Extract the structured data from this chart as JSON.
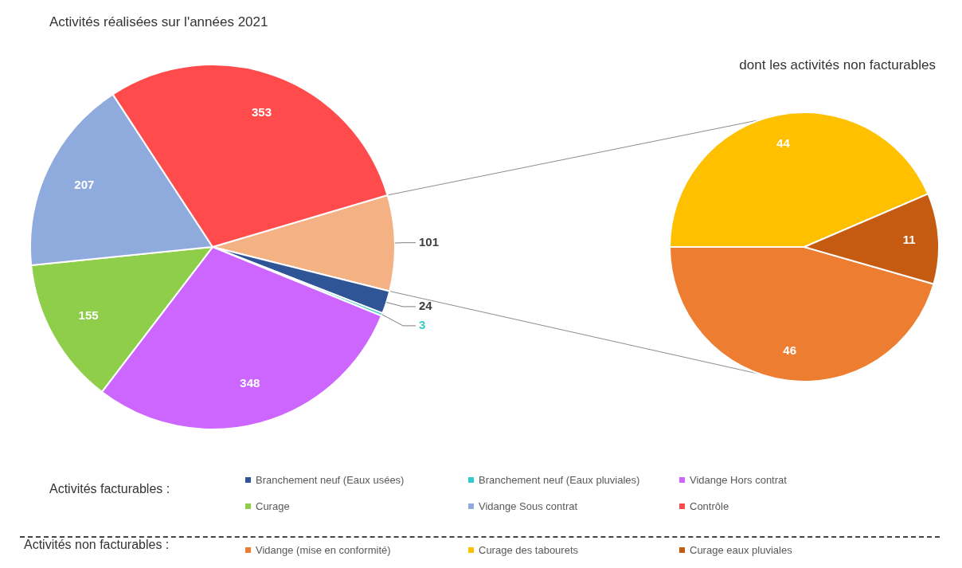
{
  "chart_data": [
    {
      "type": "pie",
      "title": "Activités réalisées sur l'années 2021",
      "legend_title": "Activités facturables :",
      "legend": "bottom",
      "data_labels": true,
      "categories": [
        null,
        "Branchement neuf (Eaux usées)",
        "Branchement neuf (Eaux pluviales)",
        "Vidange Hors contrat",
        "Curage",
        "Vidange Sous contrat",
        "Contrôle"
      ],
      "values": [
        101,
        24,
        3,
        348,
        155,
        207,
        353
      ],
      "colors": [
        "#f4b183",
        "#2f5597",
        "#33cccc",
        "#cc66ff",
        "#8fce4a",
        "#8faadc",
        "#ff4b4b"
      ]
    },
    {
      "type": "pie",
      "title": "dont les activités non facturables",
      "legend_title": "Activités non facturables :",
      "legend": "bottom",
      "data_labels": true,
      "categories": [
        "Vidange (mise en conformité)",
        "Curage des tabourets",
        "Curage eaux pluviales"
      ],
      "values": [
        46,
        44,
        11
      ],
      "colors": [
        "#ed7d31",
        "#ffc000",
        "#c55a11"
      ]
    }
  ]
}
